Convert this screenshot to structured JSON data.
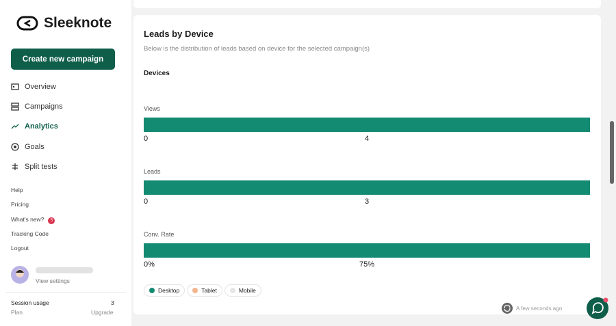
{
  "sidebar": {
    "brand": "Sleeknote",
    "create_button": "Create new campaign",
    "nav": [
      "Overview",
      "Campaigns",
      "Analytics",
      "Goals",
      "Split tests"
    ],
    "links": [
      "Help",
      "Pricing",
      "What's new?",
      "Tracking Code",
      "Logout"
    ],
    "whats_new_badge": "5",
    "user": {
      "settings": "View settings"
    },
    "session": {
      "label": "Session usage",
      "count": "3",
      "plan": "Plan",
      "upgrade": "Upgrade"
    }
  },
  "main": {
    "title": "Leads by Device",
    "subtitle": "Below is the distribution of leads based on device for the selected campaign(s)",
    "section": "Devices",
    "charts": [
      {
        "label": "Views",
        "ticks": [
          "0",
          "4"
        ]
      },
      {
        "label": "Leads",
        "ticks": [
          "0",
          "3"
        ]
      },
      {
        "label": "Conv. Rate",
        "ticks": [
          "0%",
          "75%"
        ]
      }
    ],
    "bar_color": "#138a72",
    "legend": [
      {
        "name": "Desktop",
        "color": "#138a72"
      },
      {
        "name": "Tablet",
        "color": "#f3b58e"
      },
      {
        "name": "Mobile",
        "color": "#e6e6e6"
      }
    ],
    "timestamp": "A few seconds ago"
  }
}
